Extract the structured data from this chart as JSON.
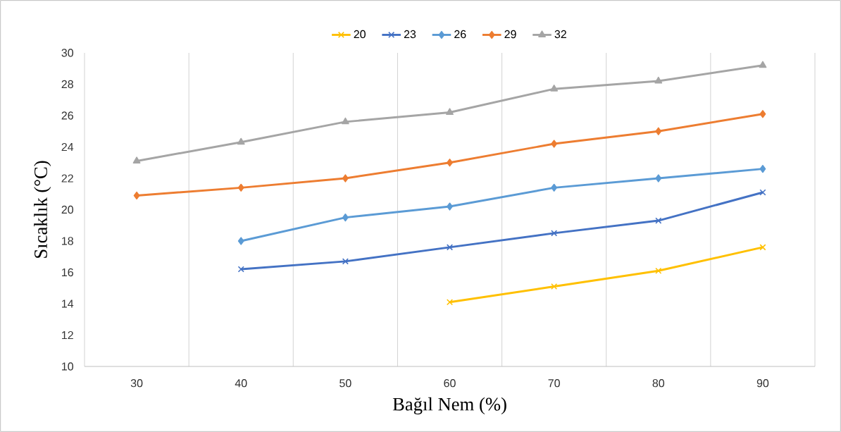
{
  "chart_data": {
    "type": "line",
    "xlabel": "Bağıl Nem (%)",
    "ylabel": "Sıcaklık (°C)",
    "categories": [
      "30",
      "40",
      "50",
      "60",
      "70",
      "80",
      "90"
    ],
    "series": [
      {
        "name": "20",
        "color": "#ffc000",
        "marker": "cross",
        "values": [
          null,
          null,
          null,
          14.1,
          15.1,
          16.1,
          17.6
        ]
      },
      {
        "name": "23",
        "color": "#4472c4",
        "marker": "cross",
        "values": [
          null,
          16.2,
          16.7,
          17.6,
          18.5,
          19.3,
          21.1
        ]
      },
      {
        "name": "26",
        "color": "#5b9bd5",
        "marker": "diamond",
        "values": [
          null,
          18.0,
          19.5,
          20.2,
          21.4,
          22.0,
          22.6
        ]
      },
      {
        "name": "29",
        "color": "#ed7d31",
        "marker": "diamond",
        "values": [
          20.9,
          21.4,
          22.0,
          23.0,
          24.2,
          25.0,
          26.1
        ]
      },
      {
        "name": "32",
        "color": "#a5a5a5",
        "marker": "triangle",
        "values": [
          23.1,
          24.3,
          25.6,
          26.2,
          27.7,
          28.2,
          29.2
        ]
      }
    ],
    "ylim": [
      10,
      30
    ],
    "yticks": [
      10,
      12,
      14,
      16,
      18,
      20,
      22,
      24,
      26,
      28,
      30
    ],
    "grid": "x",
    "legend": "top",
    "line_style": "solid"
  }
}
